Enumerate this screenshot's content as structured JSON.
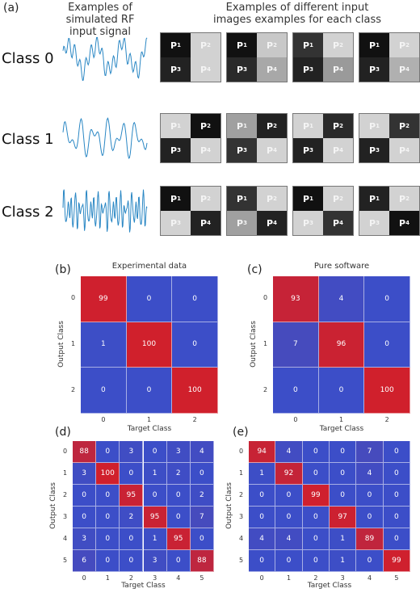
{
  "panel_a": {
    "label": "(a)",
    "signal_heading": "Examples of simulated RF input signal",
    "images_heading": "Examples of different input images examples for each class",
    "pixel_labels": [
      "P1",
      "P2",
      "P3",
      "P4"
    ],
    "classes": [
      {
        "label": "Class 0",
        "tiles": [
          [
            "#111111",
            "#d2d2d2",
            "#222222",
            "#d2d2d2"
          ],
          [
            "#111111",
            "#c8c8c8",
            "#2a2a2a",
            "#a8a8a8"
          ],
          [
            "#333333",
            "#d2d2d2",
            "#222222",
            "#9a9a9a"
          ],
          [
            "#111111",
            "#d2d2d2",
            "#222222",
            "#b0b0b0"
          ]
        ]
      },
      {
        "label": "Class 1",
        "tiles": [
          [
            "#d2d2d2",
            "#111111",
            "#222222",
            "#d2d2d2"
          ],
          [
            "#a0a0a0",
            "#222222",
            "#333333",
            "#d2d2d2"
          ],
          [
            "#d2d2d2",
            "#2a2a2a",
            "#222222",
            "#d2d2d2"
          ],
          [
            "#d2d2d2",
            "#333333",
            "#222222",
            "#d2d2d2"
          ]
        ]
      },
      {
        "label": "Class 2",
        "tiles": [
          [
            "#111111",
            "#d2d2d2",
            "#d2d2d2",
            "#222222"
          ],
          [
            "#333333",
            "#d2d2d2",
            "#a0a0a0",
            "#222222"
          ],
          [
            "#111111",
            "#d2d2d2",
            "#d2d2d2",
            "#333333"
          ],
          [
            "#222222",
            "#d2d2d2",
            "#d2d2d2",
            "#111111"
          ]
        ]
      }
    ]
  },
  "chart_data": [
    {
      "type": "heatmap",
      "panel": "(b)",
      "title": "Experimental data",
      "xlabel": "Target Class",
      "ylabel": "Output Class",
      "x_ticks": [
        "0",
        "1",
        "2"
      ],
      "y_ticks": [
        "0",
        "1",
        "2"
      ],
      "values": [
        [
          99,
          0,
          0
        ],
        [
          1,
          100,
          0
        ],
        [
          0,
          0,
          100
        ]
      ]
    },
    {
      "type": "heatmap",
      "panel": "(c)",
      "title": "Pure software",
      "xlabel": "Target Class",
      "ylabel": "Output Class",
      "x_ticks": [
        "0",
        "1",
        "2"
      ],
      "y_ticks": [
        "0",
        "1",
        "2"
      ],
      "values": [
        [
          93,
          4,
          0
        ],
        [
          7,
          96,
          0
        ],
        [
          0,
          0,
          100
        ]
      ]
    },
    {
      "type": "heatmap",
      "panel": "(d)",
      "title": "",
      "xlabel": "Target Class",
      "ylabel": "Output Class",
      "x_ticks": [
        "0",
        "1",
        "2",
        "3",
        "4",
        "5"
      ],
      "y_ticks": [
        "0",
        "1",
        "2",
        "3",
        "4",
        "5"
      ],
      "values": [
        [
          88,
          0,
          3,
          0,
          3,
          4
        ],
        [
          3,
          100,
          0,
          1,
          2,
          0
        ],
        [
          0,
          0,
          95,
          0,
          0,
          2
        ],
        [
          0,
          0,
          2,
          95,
          0,
          7
        ],
        [
          3,
          0,
          0,
          1,
          95,
          0
        ],
        [
          6,
          0,
          0,
          3,
          0,
          88
        ]
      ]
    },
    {
      "type": "heatmap",
      "panel": "(e)",
      "title": "",
      "xlabel": "Target Class",
      "ylabel": "Output Class",
      "x_ticks": [
        "0",
        "1",
        "2",
        "3",
        "4",
        "5"
      ],
      "y_ticks": [
        "0",
        "1",
        "2",
        "3",
        "4",
        "5"
      ],
      "values": [
        [
          94,
          4,
          0,
          0,
          7,
          0
        ],
        [
          1,
          92,
          0,
          0,
          4,
          0
        ],
        [
          0,
          0,
          99,
          0,
          0,
          0
        ],
        [
          0,
          0,
          0,
          97,
          0,
          0
        ],
        [
          4,
          4,
          0,
          1,
          89,
          0
        ],
        [
          0,
          0,
          0,
          1,
          0,
          99
        ]
      ]
    }
  ]
}
